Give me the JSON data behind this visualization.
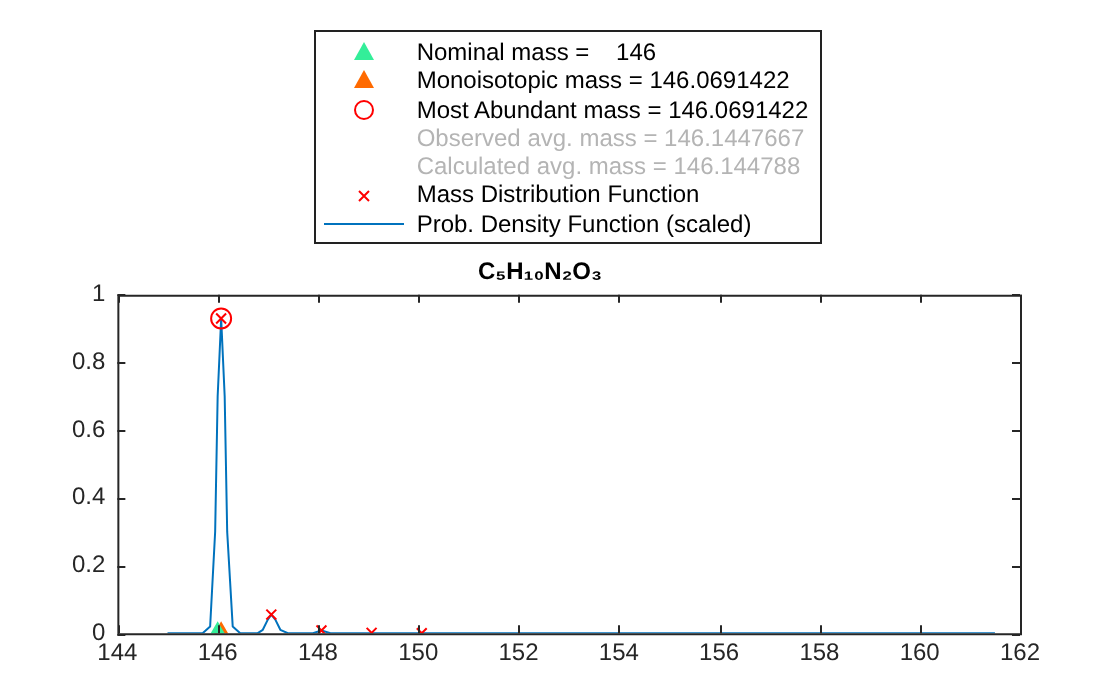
{
  "chart_data": {
    "type": "scatter",
    "title": "C₅H₁₀N₂O₃",
    "xlim": [
      144,
      162
    ],
    "xticks": [
      144,
      146,
      148,
      150,
      152,
      154,
      156,
      158,
      160,
      162
    ],
    "ylim": [
      0,
      1
    ],
    "yticks": [
      0,
      0.2,
      0.4,
      0.6,
      0.8,
      1
    ],
    "grid": false,
    "legend": "top",
    "series": [
      {
        "name": "Nominal mass =    146",
        "marker": "triangle",
        "color": "#33ee99",
        "x": [
          146
        ],
        "values": [
          0
        ]
      },
      {
        "name": "Monoisotopic mass = 146.0691422",
        "marker": "triangle",
        "color": "#ff6a00",
        "x": [
          146.0691422
        ],
        "values": [
          0
        ]
      },
      {
        "name": "Most Abundant mass = 146.0691422",
        "marker": "circle",
        "color": "#ff0000",
        "x": [
          146.0691422
        ],
        "values": [
          0.93
        ]
      },
      {
        "name": "Observed avg. mass = 146.1447667",
        "marker": "none",
        "color": "#b4b4b4"
      },
      {
        "name": "Calculated avg. mass = 146.144788",
        "marker": "none",
        "color": "#b4b4b4"
      },
      {
        "name": "Mass Distribution Function",
        "marker": "cross",
        "color": "#ff0000",
        "x": [
          146.0691422,
          147.07,
          148.07,
          149.07,
          150.07
        ],
        "values": [
          0.93,
          0.055,
          0.008,
          0.001,
          0
        ]
      },
      {
        "name": "Prob. Density Function (scaled)",
        "type": "line",
        "marker": "none",
        "color": "#0072bd",
        "x": [
          145,
          145.7,
          145.85,
          145.95,
          146.0,
          146.07,
          146.14,
          146.19,
          146.3,
          146.45,
          146.8,
          146.9,
          147.0,
          147.07,
          147.15,
          147.25,
          147.4,
          147.9,
          148.07,
          148.25,
          149,
          161.5
        ],
        "values": [
          0,
          0,
          0.02,
          0.3,
          0.7,
          0.93,
          0.7,
          0.3,
          0.02,
          0,
          0,
          0.01,
          0.04,
          0.055,
          0.04,
          0.01,
          0,
          0,
          0.008,
          0,
          0,
          0
        ]
      }
    ]
  }
}
